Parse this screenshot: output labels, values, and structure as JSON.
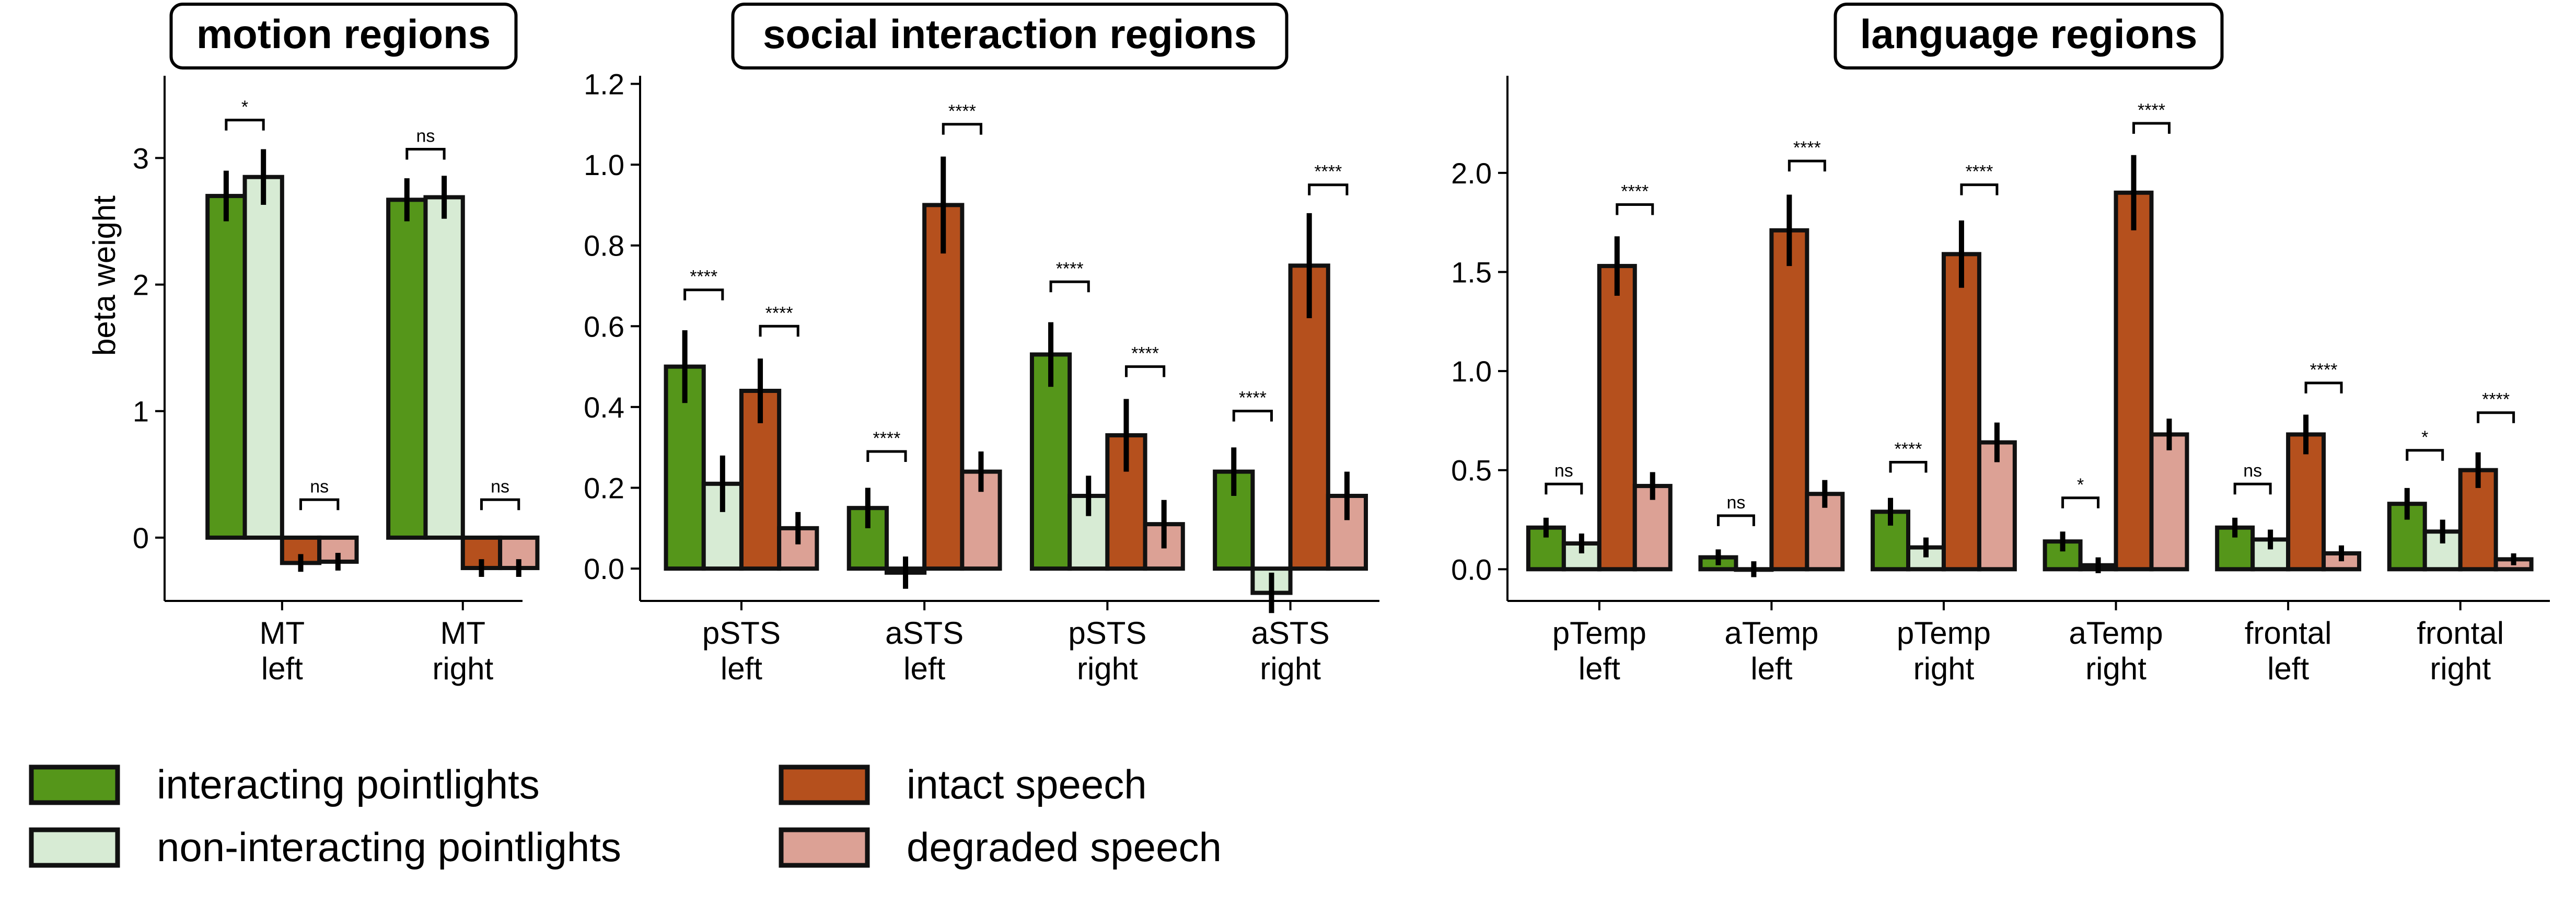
{
  "colors": {
    "interacting": "#55961a",
    "non_interacting": "#d7ebd4",
    "intact": "#b5501d",
    "degraded": "#dca195",
    "stroke": "#111111"
  },
  "legend": [
    {
      "label": "interacting pointlights",
      "color": "#55961a"
    },
    {
      "label": "non-interacting pointlights",
      "color": "#d7ebd4"
    },
    {
      "label": "intact speech",
      "color": "#b5501d"
    },
    {
      "label": "degraded speech",
      "color": "#dca195"
    }
  ],
  "chart_data": [
    {
      "type": "bar",
      "title": "motion regions",
      "ylabel": "beta weight",
      "ylim": [
        -0.5,
        3.65
      ],
      "yticks": [
        "0",
        "1",
        "2",
        "3"
      ],
      "ytick_values": [
        0,
        1,
        2,
        3
      ],
      "categories": [
        [
          "MT",
          "left"
        ],
        [
          "MT",
          "right"
        ]
      ],
      "series": [
        {
          "name": "interacting pointlights",
          "values": [
            2.7,
            2.67
          ],
          "errors": [
            0.2,
            0.17
          ]
        },
        {
          "name": "non-interacting pointlights",
          "values": [
            2.85,
            2.69
          ],
          "errors": [
            0.22,
            0.17
          ]
        },
        {
          "name": "intact speech",
          "values": [
            -0.2,
            -0.24
          ],
          "errors": [
            0.07,
            0.07
          ]
        },
        {
          "name": "degraded speech",
          "values": [
            -0.19,
            -0.24
          ],
          "errors": [
            0.07,
            0.07
          ]
        }
      ],
      "significance": [
        {
          "cat": 0,
          "pair": "pointlights",
          "label": "*",
          "level": 3.3
        },
        {
          "cat": 0,
          "pair": "speech",
          "label": "ns",
          "level": 0.3
        },
        {
          "cat": 1,
          "pair": "pointlights",
          "label": "ns",
          "level": 3.07
        },
        {
          "cat": 1,
          "pair": "speech",
          "label": "ns",
          "level": 0.3
        }
      ]
    },
    {
      "type": "bar",
      "title": "social interaction regions",
      "ylabel": "",
      "ylim": [
        -0.08,
        1.22
      ],
      "yticks": [
        "0.0",
        "0.2",
        "0.4",
        "0.6",
        "0.8",
        "1.0",
        "1.2"
      ],
      "ytick_values": [
        0,
        0.2,
        0.4,
        0.6,
        0.8,
        1.0,
        1.2
      ],
      "categories": [
        [
          "pSTS",
          "left"
        ],
        [
          "aSTS",
          "left"
        ],
        [
          "pSTS",
          "right"
        ],
        [
          "aSTS",
          "right"
        ]
      ],
      "series": [
        {
          "name": "interacting pointlights",
          "values": [
            0.5,
            0.15,
            0.53,
            0.24
          ],
          "errors": [
            0.09,
            0.05,
            0.08,
            0.06
          ]
        },
        {
          "name": "non-interacting pointlights",
          "values": [
            0.21,
            -0.01,
            0.18,
            -0.06
          ],
          "errors": [
            0.07,
            0.04,
            0.05,
            0.05
          ]
        },
        {
          "name": "intact speech",
          "values": [
            0.44,
            0.9,
            0.33,
            0.75
          ],
          "errors": [
            0.08,
            0.12,
            0.09,
            0.13
          ]
        },
        {
          "name": "degraded speech",
          "values": [
            0.1,
            0.24,
            0.11,
            0.18
          ],
          "errors": [
            0.04,
            0.05,
            0.06,
            0.06
          ]
        }
      ],
      "significance": [
        {
          "cat": 0,
          "pair": "pointlights",
          "label": "****",
          "level": 0.69
        },
        {
          "cat": 0,
          "pair": "speech",
          "label": "****",
          "level": 0.6
        },
        {
          "cat": 1,
          "pair": "pointlights",
          "label": "****",
          "level": 0.29
        },
        {
          "cat": 1,
          "pair": "speech",
          "label": "****",
          "level": 1.1
        },
        {
          "cat": 2,
          "pair": "pointlights",
          "label": "****",
          "level": 0.71
        },
        {
          "cat": 2,
          "pair": "speech",
          "label": "****",
          "level": 0.5
        },
        {
          "cat": 3,
          "pair": "pointlights",
          "label": "****",
          "level": 0.39
        },
        {
          "cat": 3,
          "pair": "speech",
          "label": "****",
          "level": 0.95
        }
      ]
    },
    {
      "type": "bar",
      "title": "language regions",
      "ylabel": "",
      "ylim": [
        -0.16,
        2.49
      ],
      "yticks": [
        "0.0",
        "0.5",
        "1.0",
        "1.5",
        "2.0"
      ],
      "ytick_values": [
        0,
        0.5,
        1.0,
        1.5,
        2.0
      ],
      "categories": [
        [
          "pTemp",
          "left"
        ],
        [
          "aTemp",
          "left"
        ],
        [
          "pTemp",
          "right"
        ],
        [
          "aTemp",
          "right"
        ],
        [
          "frontal",
          "left"
        ],
        [
          "frontal",
          "right"
        ]
      ],
      "series": [
        {
          "name": "interacting pointlights",
          "values": [
            0.21,
            0.06,
            0.29,
            0.14,
            0.21,
            0.33
          ],
          "errors": [
            0.05,
            0.04,
            0.07,
            0.05,
            0.05,
            0.08
          ]
        },
        {
          "name": "non-interacting pointlights",
          "values": [
            0.13,
            0.0,
            0.11,
            0.02,
            0.15,
            0.19
          ],
          "errors": [
            0.05,
            0.04,
            0.05,
            0.04,
            0.05,
            0.06
          ]
        },
        {
          "name": "intact speech",
          "values": [
            1.53,
            1.71,
            1.59,
            1.9,
            0.68,
            0.5
          ],
          "errors": [
            0.15,
            0.18,
            0.17,
            0.19,
            0.1,
            0.09
          ]
        },
        {
          "name": "degraded speech",
          "values": [
            0.42,
            0.38,
            0.64,
            0.68,
            0.08,
            0.05
          ],
          "errors": [
            0.07,
            0.07,
            0.1,
            0.08,
            0.04,
            0.03
          ]
        }
      ],
      "significance": [
        {
          "cat": 0,
          "pair": "pointlights",
          "label": "ns",
          "level": 0.43
        },
        {
          "cat": 0,
          "pair": "speech",
          "label": "****",
          "level": 1.84
        },
        {
          "cat": 1,
          "pair": "pointlights",
          "label": "ns",
          "level": 0.27
        },
        {
          "cat": 1,
          "pair": "speech",
          "label": "****",
          "level": 2.06
        },
        {
          "cat": 2,
          "pair": "pointlights",
          "label": "****",
          "level": 0.54
        },
        {
          "cat": 2,
          "pair": "speech",
          "label": "****",
          "level": 1.94
        },
        {
          "cat": 3,
          "pair": "pointlights",
          "label": "*",
          "level": 0.36
        },
        {
          "cat": 3,
          "pair": "speech",
          "label": "****",
          "level": 2.25
        },
        {
          "cat": 4,
          "pair": "pointlights",
          "label": "ns",
          "level": 0.43
        },
        {
          "cat": 4,
          "pair": "speech",
          "label": "****",
          "level": 0.94
        },
        {
          "cat": 5,
          "pair": "pointlights",
          "label": "*",
          "level": 0.6
        },
        {
          "cat": 5,
          "pair": "speech",
          "label": "****",
          "level": 0.79
        }
      ]
    }
  ]
}
